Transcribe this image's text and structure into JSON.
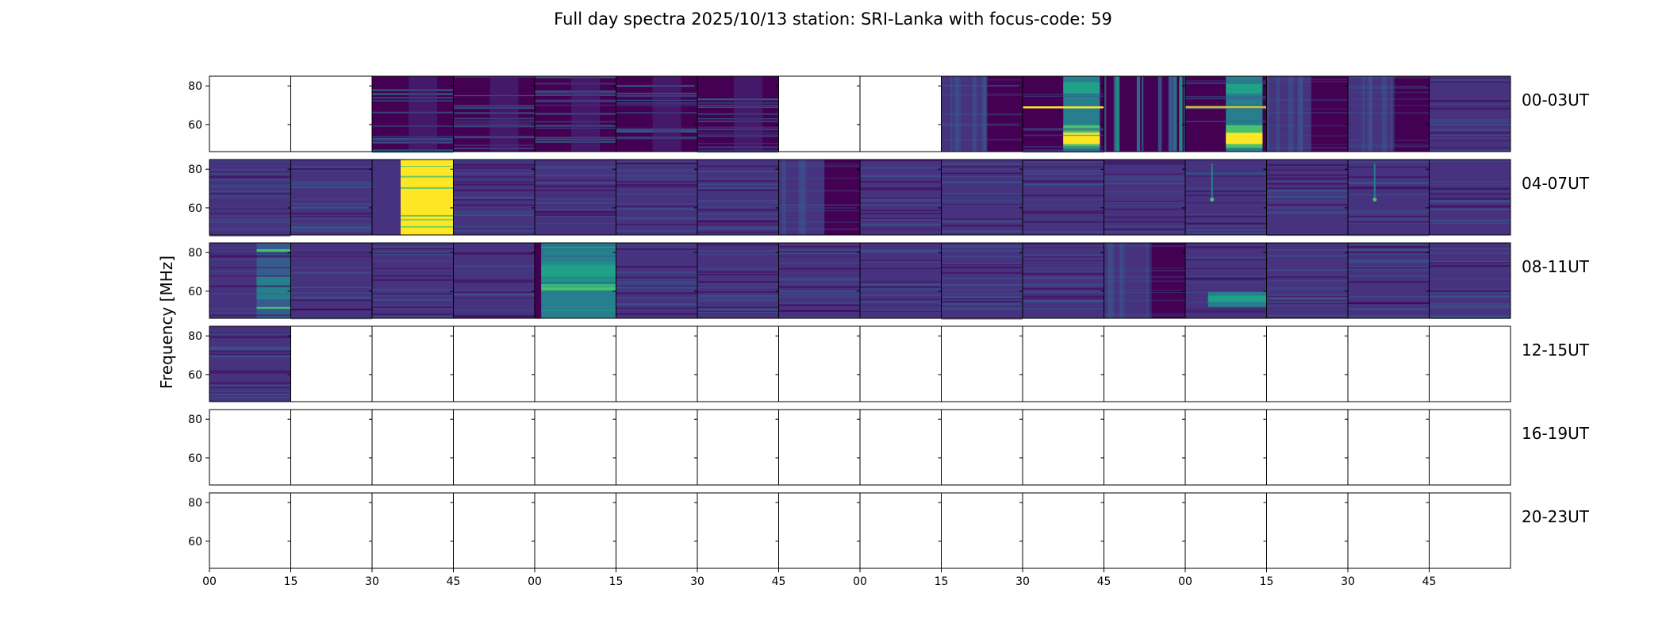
{
  "chart_data": {
    "type": "heatmap",
    "title": "Full day spectra 2025/10/13 station: SRI-Lanka with focus-code: 59",
    "ylabel": "Frequency [MHz]",
    "ylim": [
      46,
      85
    ],
    "yticks": [
      60,
      80
    ],
    "xticks": [
      "00",
      "15",
      "30",
      "45",
      "00",
      "15",
      "30",
      "45",
      "00",
      "15",
      "30",
      "45",
      "00",
      "15",
      "30",
      "45"
    ],
    "colormap": "viridis",
    "colors": {
      "dark": "#440154",
      "purple": "#46327e",
      "blue": "#365c8d",
      "teal": "#277f8e",
      "green": "#1fa187",
      "lime": "#4ac16d",
      "yellow": "#fde725",
      "frame": "#000000"
    },
    "rows": [
      {
        "label": "00-03UT",
        "panels": [
          "empty",
          "empty",
          "dark-streaks",
          "dark-streaks",
          "dark-streaks",
          "dark-streaks",
          "dark-streaks",
          "empty",
          "empty",
          "mixed",
          "bright-burst",
          "bright-bands",
          "bright-burst",
          "mixed",
          "mixed",
          "uniform"
        ]
      },
      {
        "label": "04-07UT",
        "panels": [
          "uniform",
          "uniform",
          "saturated",
          "uniform",
          "uniform",
          "uniform",
          "uniform",
          "mixed",
          "uniform",
          "uniform",
          "uniform",
          "uniform",
          "spike",
          "uniform",
          "spike",
          "uniform"
        ]
      },
      {
        "label": "08-11UT",
        "panels": [
          "partial-bright",
          "uniform",
          "uniform",
          "uniform",
          "bright-wide",
          "uniform",
          "uniform",
          "uniform",
          "uniform",
          "uniform",
          "uniform",
          "mixed",
          "low-bright",
          "uniform",
          "uniform",
          "uniform"
        ]
      },
      {
        "label": "12-15UT",
        "panels": [
          "uniform",
          "empty",
          "empty",
          "empty",
          "empty",
          "empty",
          "empty",
          "empty",
          "empty",
          "empty",
          "empty",
          "empty",
          "empty",
          "empty",
          "empty",
          "empty"
        ]
      },
      {
        "label": "16-19UT",
        "panels": [
          "empty",
          "empty",
          "empty",
          "empty",
          "empty",
          "empty",
          "empty",
          "empty",
          "empty",
          "empty",
          "empty",
          "empty",
          "empty",
          "empty",
          "empty",
          "empty"
        ]
      },
      {
        "label": "20-23UT",
        "panels": [
          "empty",
          "empty",
          "empty",
          "empty",
          "empty",
          "empty",
          "empty",
          "empty",
          "empty",
          "empty",
          "empty",
          "empty",
          "empty",
          "empty",
          "empty",
          "empty"
        ]
      }
    ]
  }
}
